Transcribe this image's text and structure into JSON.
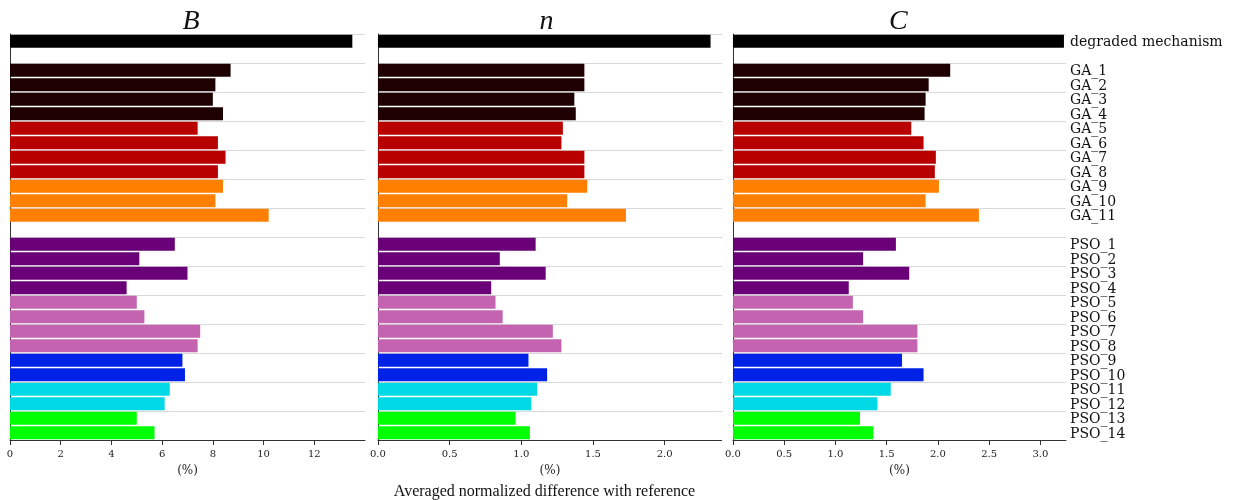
{
  "chart_data": [
    {
      "type": "bar",
      "orientation": "horizontal",
      "title": "B",
      "xlabel": "(%)",
      "grid": "y",
      "tick_labels": "x",
      "categories": [
        null,
        null,
        null,
        null,
        null,
        null,
        null,
        null,
        null,
        null,
        null,
        null,
        null,
        null,
        null,
        null,
        null,
        null,
        null,
        null,
        null,
        null,
        null,
        null,
        null,
        null,
        null,
        null
      ],
      "values": [
        13.5,
        null,
        8.7,
        8.1,
        8.0,
        8.4,
        7.4,
        8.2,
        8.5,
        8.2,
        8.4,
        8.1,
        10.2,
        null,
        6.5,
        5.1,
        7.0,
        4.6,
        5.0,
        5.3,
        7.5,
        7.4,
        6.8,
        6.9,
        6.3,
        6.1,
        5.0,
        5.7
      ],
      "colors": [
        "#000000",
        null,
        "#1f0000",
        "#1f0000",
        "#1f0000",
        "#1f0000",
        "#b80000",
        "#b80000",
        "#b80000",
        "#b80000",
        "#ff7f00",
        "#ff7f00",
        "#ff7f00",
        null,
        "#6a0078",
        "#6a0078",
        "#6a0078",
        "#6a0078",
        "#c463b0",
        "#c463b0",
        "#c463b0",
        "#c463b0",
        "#0022e6",
        "#0022e6",
        "#00d8e6",
        "#00d8e6",
        "#00ff00",
        "#00ff00"
      ],
      "xlim": [
        0,
        14
      ],
      "xticks": [
        0,
        2,
        4,
        6,
        8,
        10,
        12
      ]
    },
    {
      "type": "bar",
      "orientation": "horizontal",
      "title": "n",
      "xlabel": "(%)",
      "grid": "y",
      "tick_labels": "x",
      "annotations": [
        "Averaged normalized difference with reference"
      ],
      "categories": [
        null,
        null,
        null,
        null,
        null,
        null,
        null,
        null,
        null,
        null,
        null,
        null,
        null,
        null,
        null,
        null,
        null,
        null,
        null,
        null,
        null,
        null,
        null,
        null,
        null,
        null,
        null,
        null
      ],
      "values": [
        2.32,
        null,
        1.44,
        1.44,
        1.37,
        1.38,
        1.29,
        1.28,
        1.44,
        1.44,
        1.46,
        1.32,
        1.73,
        null,
        1.1,
        0.85,
        1.17,
        0.79,
        0.82,
        0.87,
        1.22,
        1.28,
        1.05,
        1.18,
        1.11,
        1.07,
        0.96,
        1.06
      ],
      "colors": [
        "#000000",
        null,
        "#1f0000",
        "#1f0000",
        "#1f0000",
        "#1f0000",
        "#b80000",
        "#b80000",
        "#b80000",
        "#b80000",
        "#ff7f00",
        "#ff7f00",
        "#ff7f00",
        null,
        "#6a0078",
        "#6a0078",
        "#6a0078",
        "#6a0078",
        "#c463b0",
        "#c463b0",
        "#c463b0",
        "#c463b0",
        "#0022e6",
        "#0022e6",
        "#00d8e6",
        "#00d8e6",
        "#00ff00",
        "#00ff00"
      ],
      "xlim": [
        0,
        2.4
      ],
      "xticks": [
        {
          "value": 0,
          "label": "0.0"
        },
        {
          "value": 0.5,
          "label": "0.5"
        },
        {
          "value": 1,
          "label": "1.0"
        },
        {
          "value": 1.5,
          "label": "1.5"
        },
        {
          "value": 2,
          "label": "2.0"
        }
      ]
    },
    {
      "type": "bar",
      "orientation": "horizontal",
      "title": "C",
      "xlabel": "(%)",
      "grid": "y",
      "categories": [
        "degraded mechanism",
        null,
        "GA_1",
        "GA_2",
        "GA_3",
        "GA_4",
        "GA_5",
        "GA_6",
        "GA_7",
        "GA_8",
        "GA_9",
        "GA_10",
        "GA_11",
        null,
        "PSO_1",
        "PSO_2",
        "PSO_3",
        "PSO_4",
        "PSO_5",
        "PSO_6",
        "PSO_7",
        "PSO_8",
        "PSO_9",
        "PSO_10",
        "PSO_11",
        "PSO_12",
        "PSO_13",
        "PSO_14"
      ],
      "values": [
        3.23,
        null,
        2.12,
        1.91,
        1.88,
        1.87,
        1.74,
        1.86,
        1.98,
        1.97,
        2.01,
        1.88,
        2.4,
        null,
        1.59,
        1.27,
        1.72,
        1.13,
        1.17,
        1.27,
        1.8,
        1.8,
        1.65,
        1.86,
        1.54,
        1.41,
        1.24,
        1.37
      ],
      "colors": [
        "#000000",
        null,
        "#1f0000",
        "#1f0000",
        "#1f0000",
        "#1f0000",
        "#b80000",
        "#b80000",
        "#b80000",
        "#b80000",
        "#ff7f00",
        "#ff7f00",
        "#ff7f00",
        null,
        "#6a0078",
        "#6a0078",
        "#6a0078",
        "#6a0078",
        "#c463b0",
        "#c463b0",
        "#c463b0",
        "#c463b0",
        "#0022e6",
        "#0022e6",
        "#00d8e6",
        "#00d8e6",
        "#00ff00",
        "#00ff00"
      ],
      "xlim": [
        0,
        3.25
      ],
      "xticks": [
        {
          "value": 0,
          "label": "0.0"
        },
        {
          "value": 0.5,
          "label": "0.5"
        },
        {
          "value": 1,
          "label": "1.0"
        },
        {
          "value": 1.5,
          "label": "1.5"
        },
        {
          "value": 2,
          "label": "2.0"
        },
        {
          "value": 2.5,
          "label": "2.5"
        },
        {
          "value": 3,
          "label": "3.0"
        }
      ]
    }
  ]
}
